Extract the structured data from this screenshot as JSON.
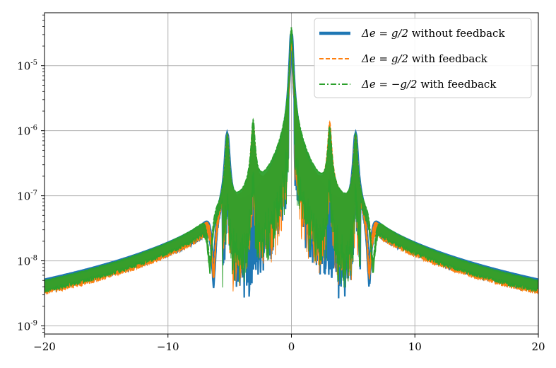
{
  "chart_data": {
    "type": "line",
    "title": "",
    "xlabel": "",
    "ylabel": "",
    "xlim": [
      -20,
      20
    ],
    "ylim": [
      7.5e-10,
      6.5e-05
    ],
    "yscale": "log",
    "grid": true,
    "legend_position": "top-right",
    "x_ticks": [
      -20,
      -10,
      0,
      10,
      20
    ],
    "x_tick_labels": [
      "−20",
      "−10",
      "0",
      "10",
      "20"
    ],
    "y_ticks": [
      1e-09,
      1e-08,
      1e-07,
      1e-06,
      1e-05
    ],
    "y_tick_labels": [
      {
        "base": "10",
        "exp": "-9"
      },
      {
        "base": "10",
        "exp": "-8"
      },
      {
        "base": "10",
        "exp": "-7"
      },
      {
        "base": "10",
        "exp": "-6"
      },
      {
        "base": "10",
        "exp": "-5"
      }
    ],
    "series": [
      {
        "name_math": "Δe = g/2",
        "name_text": " without feedback",
        "color": "#1f77b4",
        "style": "solid",
        "peaks": [
          {
            "x": 0,
            "y": 3e-05
          },
          {
            "x": -5.2,
            "y": 8e-07
          },
          {
            "x": 5.2,
            "y": 8e-07
          }
        ],
        "dips": [
          {
            "x": -6.3,
            "y": 1.4e-09
          },
          {
            "x": 6.3,
            "y": 1.4e-09
          }
        ],
        "edge_value": 1e-08
      },
      {
        "name_math": "Δe = g/2",
        "name_text": " with feedback",
        "color": "#ff7f0e",
        "style": "dashed",
        "peaks": [
          {
            "x": 0,
            "y": 3e-05
          },
          {
            "x": -5.2,
            "y": 8e-07
          },
          {
            "x": 5.2,
            "y": 8e-07
          },
          {
            "x": -3.1,
            "y": 1.2e-06
          },
          {
            "x": 3.1,
            "y": 1.2e-06
          }
        ],
        "dips": [
          {
            "x": -6.3,
            "y": 1.7e-09
          },
          {
            "x": 6.3,
            "y": 1.7e-09
          }
        ],
        "edge_value": 8e-09
      },
      {
        "name_math": "Δe = −g/2",
        "name_text": " with feedback",
        "color": "#2ca02c",
        "style": "dashdot",
        "peaks": [
          {
            "x": 0,
            "y": 3.8e-05
          },
          {
            "x": -5.2,
            "y": 8e-07
          },
          {
            "x": 5.2,
            "y": 8e-07
          },
          {
            "x": -3.1,
            "y": 1.3e-06
          },
          {
            "x": 3.1,
            "y": 1e-06
          }
        ],
        "dips": [
          {
            "x": -6.6,
            "y": 2.5e-09
          },
          {
            "x": 6.6,
            "y": 2.5e-09
          }
        ],
        "edge_value": 7.5e-09
      }
    ]
  }
}
